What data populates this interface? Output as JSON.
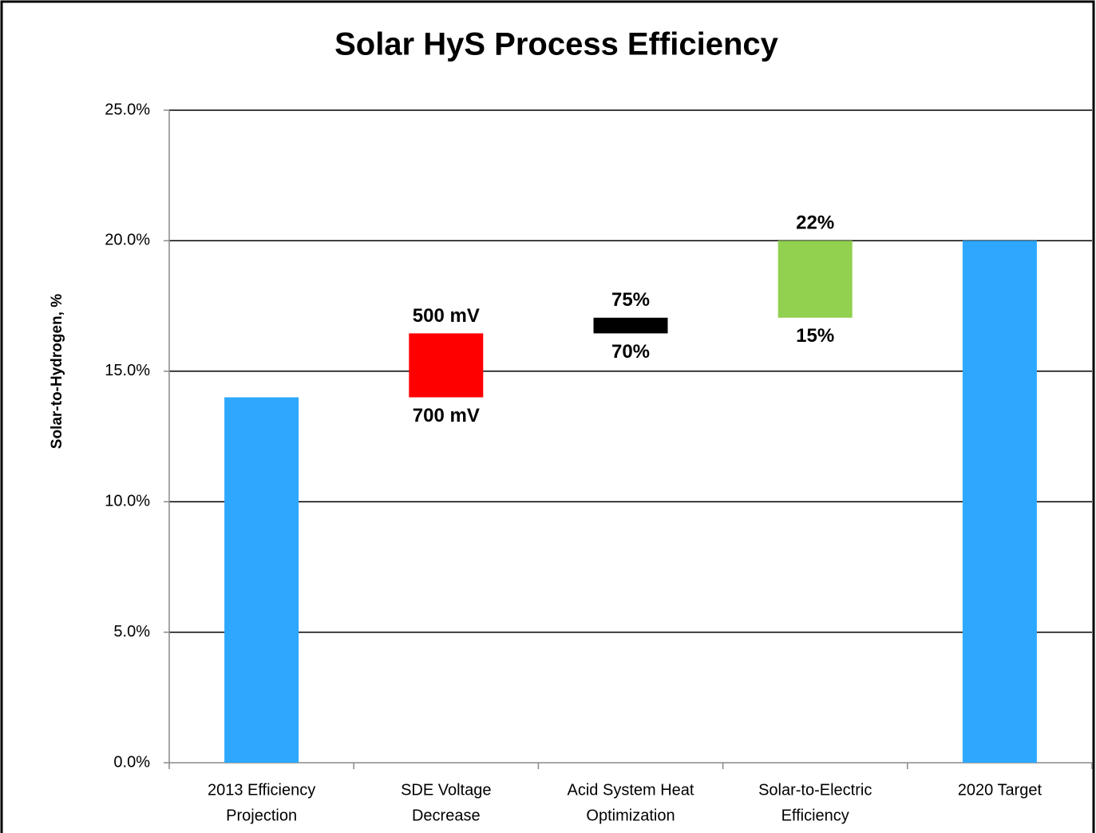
{
  "chart_data": {
    "type": "waterfall",
    "title": "Solar HyS Process Efficiency",
    "ylabel": "Solar-to-Hydrogen, %",
    "categories": [
      [
        "2013 Efficiency",
        "Projection"
      ],
      [
        "SDE Voltage",
        "Decrease"
      ],
      [
        "Acid System Heat",
        "Optimization"
      ],
      [
        "Solar-to-Electric",
        "Efficiency"
      ],
      [
        "2020 Target"
      ]
    ],
    "values": [
      14.0,
      2.45,
      0.6,
      2.95,
      20.0
    ],
    "measure": [
      "absolute",
      "relative",
      "relative",
      "relative",
      "total"
    ],
    "colors": [
      "#2ea8ff",
      "#ff0000",
      "#000000",
      "#92d050",
      "#2ea8ff"
    ],
    "top_labels": [
      null,
      "500 mV",
      "75%",
      "22%",
      null
    ],
    "bottom_labels": [
      null,
      "700 mV",
      "70%",
      "15%",
      null
    ],
    "ylim": [
      0,
      25
    ],
    "yticks": [
      {
        "value": 0,
        "label": "0.0%"
      },
      {
        "value": 5,
        "label": "5.0%"
      },
      {
        "value": 10,
        "label": "10.0%"
      },
      {
        "value": 15,
        "label": "15.0%"
      },
      {
        "value": 20,
        "label": "20.0%"
      },
      {
        "value": 25,
        "label": "25.0%"
      }
    ],
    "grid": true
  }
}
